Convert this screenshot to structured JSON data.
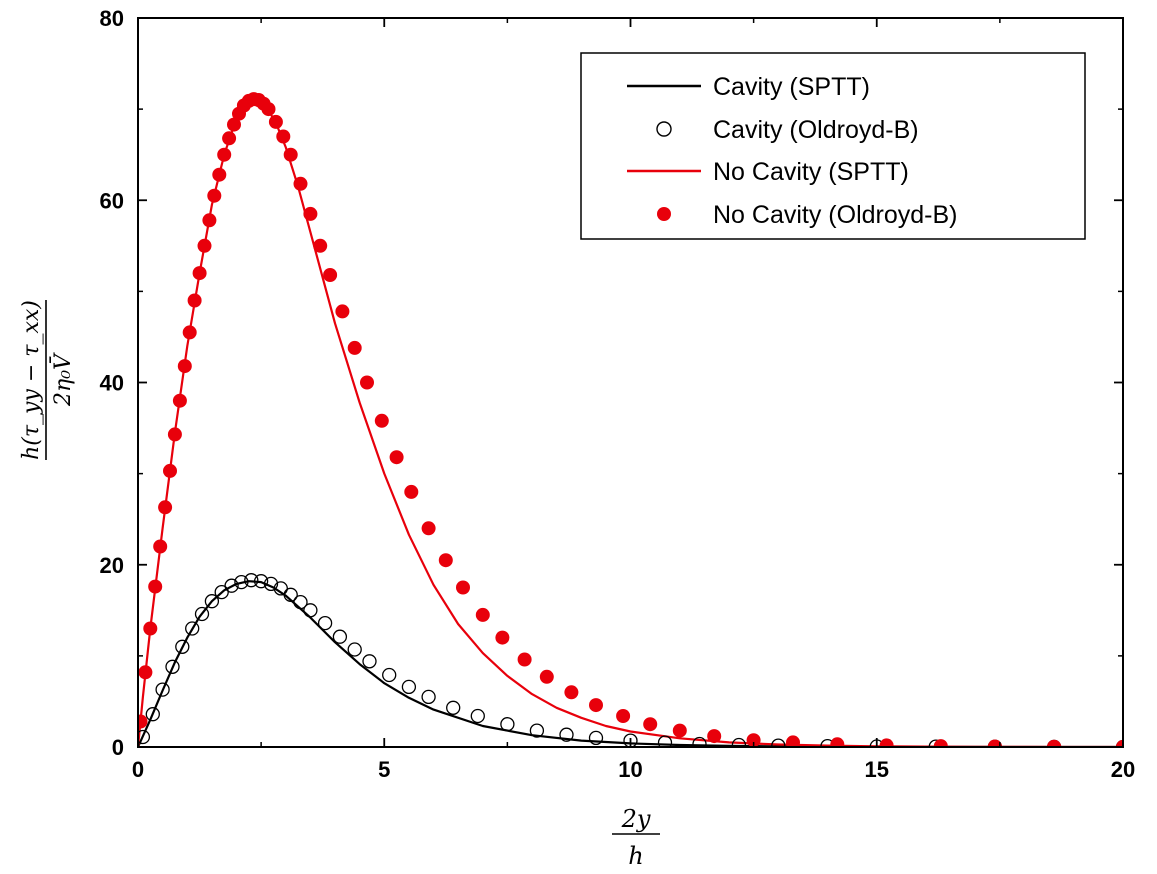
{
  "chart_data": {
    "type": "scatter",
    "title": "",
    "xlabel": {
      "numerator": "2y",
      "denominator": "h"
    },
    "ylabel": {
      "numerator": "h(τ_yy − τ_xx)",
      "denominator": "2η₀V̄"
    },
    "xlim": [
      0,
      20
    ],
    "ylim": [
      0,
      80
    ],
    "xticks": [
      "0",
      "5",
      "10",
      "15",
      "20"
    ],
    "yticks": [
      "0",
      "20",
      "40",
      "60",
      "80"
    ],
    "grid": false,
    "legend_position": "top-right",
    "series": [
      {
        "name": "Cavity (SPTT)",
        "mark": "line",
        "color": "#000000",
        "x": [
          0,
          0.25,
          0.5,
          0.75,
          1.0,
          1.25,
          1.5,
          1.75,
          2.0,
          2.25,
          2.5,
          2.75,
          3.0,
          3.5,
          4.0,
          4.5,
          5.0,
          5.5,
          6.0,
          7.0,
          8.0,
          9.0,
          10.0,
          11.0,
          12.0,
          13.0,
          14.0,
          15.0,
          16.0,
          18.0,
          20.0
        ],
        "y": [
          0,
          3.0,
          6.2,
          9.3,
          12.0,
          14.3,
          16.0,
          17.2,
          17.9,
          18.2,
          18.1,
          17.5,
          16.6,
          14.2,
          11.5,
          9.1,
          7.0,
          5.4,
          4.1,
          2.3,
          1.3,
          0.7,
          0.4,
          0.22,
          0.12,
          0.07,
          0.04,
          0.02,
          0.01,
          0.005,
          0
        ]
      },
      {
        "name": "Cavity (Oldroyd-B)",
        "mark": "open-circle",
        "color": "#000000",
        "x": [
          0.1,
          0.3,
          0.5,
          0.7,
          0.9,
          1.1,
          1.3,
          1.5,
          1.7,
          1.9,
          2.1,
          2.3,
          2.5,
          2.7,
          2.9,
          3.1,
          3.3,
          3.5,
          3.8,
          4.1,
          4.4,
          4.7,
          5.1,
          5.5,
          5.9,
          6.4,
          6.9,
          7.5,
          8.1,
          8.7,
          9.3,
          10.0,
          10.7,
          11.4,
          12.2,
          13.0,
          14.0,
          15.0,
          16.2,
          17.4,
          18.6,
          20.0
        ],
        "y": [
          1.1,
          3.6,
          6.3,
          8.8,
          11.0,
          13.0,
          14.6,
          16.0,
          17.0,
          17.7,
          18.1,
          18.3,
          18.2,
          17.9,
          17.4,
          16.7,
          15.9,
          15.0,
          13.6,
          12.1,
          10.7,
          9.4,
          7.9,
          6.6,
          5.5,
          4.3,
          3.4,
          2.5,
          1.8,
          1.35,
          1.0,
          0.7,
          0.48,
          0.33,
          0.22,
          0.15,
          0.1,
          0.06,
          0.04,
          0.02,
          0.01,
          0.005
        ]
      },
      {
        "name": "No Cavity (SPTT)",
        "mark": "line",
        "color": "#e8000b",
        "x": [
          0,
          0.1,
          0.25,
          0.5,
          0.75,
          1.0,
          1.25,
          1.5,
          1.75,
          2.0,
          2.25,
          2.4,
          2.6,
          2.8,
          3.0,
          3.25,
          3.5,
          3.75,
          4.0,
          4.5,
          5.0,
          5.5,
          6.0,
          6.5,
          7.0,
          7.5,
          8.0,
          8.5,
          9.0,
          9.5,
          10.0,
          11.0,
          12.0,
          13.0,
          14.0,
          15.0,
          16.0,
          17.0,
          18.0,
          19.0,
          20.0
        ],
        "y": [
          0,
          5.5,
          13.0,
          24.0,
          34.5,
          44.0,
          52.0,
          59.5,
          65.0,
          69.0,
          70.8,
          71.0,
          70.3,
          68.5,
          65.8,
          61.5,
          56.5,
          51.5,
          46.5,
          37.8,
          30.0,
          23.3,
          17.8,
          13.5,
          10.3,
          7.8,
          5.8,
          4.3,
          3.2,
          2.3,
          1.7,
          0.95,
          0.5,
          0.27,
          0.15,
          0.08,
          0.04,
          0.02,
          0.01,
          0.005,
          0
        ]
      },
      {
        "name": "No Cavity (Oldroyd-B)",
        "mark": "filled-circle",
        "color": "#e8000b",
        "x": [
          0.05,
          0.15,
          0.25,
          0.35,
          0.45,
          0.55,
          0.65,
          0.75,
          0.85,
          0.95,
          1.05,
          1.15,
          1.25,
          1.35,
          1.45,
          1.55,
          1.65,
          1.75,
          1.85,
          1.95,
          2.05,
          2.15,
          2.25,
          2.35,
          2.45,
          2.55,
          2.65,
          2.8,
          2.95,
          3.1,
          3.3,
          3.5,
          3.7,
          3.9,
          4.15,
          4.4,
          4.65,
          4.95,
          5.25,
          5.55,
          5.9,
          6.25,
          6.6,
          7.0,
          7.4,
          7.85,
          8.3,
          8.8,
          9.3,
          9.85,
          10.4,
          11.0,
          11.7,
          12.5,
          13.3,
          14.2,
          15.2,
          16.3,
          17.4,
          18.6,
          20.0
        ],
        "y": [
          2.8,
          8.2,
          13.0,
          17.6,
          22.0,
          26.3,
          30.3,
          34.3,
          38.0,
          41.8,
          45.5,
          49.0,
          52.0,
          55.0,
          57.8,
          60.5,
          62.8,
          65.0,
          66.8,
          68.3,
          69.5,
          70.4,
          70.9,
          71.1,
          71.0,
          70.6,
          70.0,
          68.6,
          67.0,
          65.0,
          61.8,
          58.5,
          55.0,
          51.8,
          47.8,
          43.8,
          40.0,
          35.8,
          31.8,
          28.0,
          24.0,
          20.5,
          17.5,
          14.5,
          12.0,
          9.6,
          7.7,
          6.0,
          4.6,
          3.4,
          2.5,
          1.8,
          1.2,
          0.75,
          0.5,
          0.3,
          0.18,
          0.1,
          0.06,
          0.03,
          0.01
        ]
      }
    ]
  }
}
